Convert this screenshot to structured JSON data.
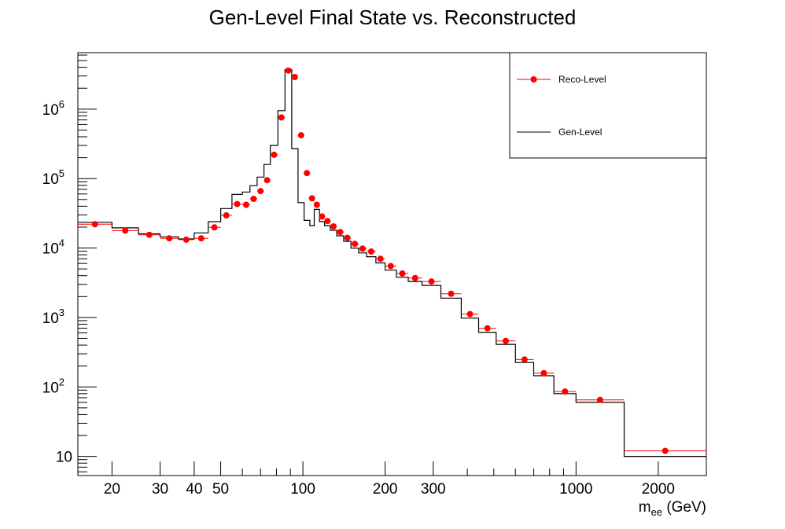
{
  "chart_data": {
    "type": "histogram",
    "title": "Gen-Level Final State vs. Reconstructed",
    "xlabel": {
      "main": "m",
      "sub": "ee",
      "unit": " (GeV)"
    },
    "ylabel": "",
    "x_scale": "log",
    "y_scale": "log",
    "xlim": [
      15,
      3000
    ],
    "ylim": [
      5.3,
      6500000
    ],
    "x_ticks": [
      {
        "value": 20,
        "label": "20"
      },
      {
        "value": 30,
        "label": "30"
      },
      {
        "value": 40,
        "label": "40"
      },
      {
        "value": 50,
        "label": "50"
      },
      {
        "value": 100,
        "label": "100"
      },
      {
        "value": 200,
        "label": "200"
      },
      {
        "value": 300,
        "label": "300"
      },
      {
        "value": 1000,
        "label": "1000"
      },
      {
        "value": 2000,
        "label": "2000"
      }
    ],
    "y_ticks": [
      {
        "value": 10,
        "label": "10",
        "exp": ""
      },
      {
        "value": 100,
        "label": "10",
        "exp": "2"
      },
      {
        "value": 1000,
        "label": "10",
        "exp": "3"
      },
      {
        "value": 10000,
        "label": "10",
        "exp": "4"
      },
      {
        "value": 100000,
        "label": "10",
        "exp": "5"
      },
      {
        "value": 1000000,
        "label": "10",
        "exp": "6"
      }
    ],
    "bin_edges": [
      15,
      20,
      25,
      30,
      35,
      40,
      45,
      50,
      55,
      60,
      64,
      68,
      72,
      76,
      81,
      86,
      91,
      96,
      101,
      106,
      110,
      115,
      120,
      126,
      133,
      141,
      150,
      160,
      171,
      185,
      200,
      220,
      243,
      273,
      320,
      380,
      440,
      510,
      600,
      700,
      830,
      1000,
      1500,
      3000
    ],
    "series": [
      {
        "name": "Reco-Level",
        "style": "markers",
        "color": "#ff0000",
        "values": [
          22000,
          17800,
          15500,
          13800,
          13200,
          13800,
          19800,
          29500,
          43000,
          42000,
          51000,
          66000,
          95000,
          220000,
          760000,
          3600000,
          2900000,
          420000,
          120000,
          52000,
          42000,
          28500,
          24500,
          20500,
          17000,
          14000,
          11500,
          9800,
          8900,
          7000,
          5500,
          4300,
          3700,
          3300,
          2200,
          1120,
          700,
          460,
          248,
          158,
          86,
          65,
          12
        ]
      },
      {
        "name": "Gen-Level",
        "style": "step",
        "color": "#000000",
        "values": [
          23500,
          19500,
          16000,
          14500,
          13500,
          16500,
          24000,
          37000,
          59000,
          64000,
          79000,
          105000,
          160000,
          300000,
          950000,
          3700000,
          270000,
          45000,
          25000,
          21000,
          36000,
          24000,
          21000,
          18000,
          15000,
          12500,
          10000,
          8500,
          7500,
          6100,
          4800,
          3800,
          3300,
          2900,
          1900,
          980,
          610,
          410,
          225,
          145,
          80,
          60,
          10
        ]
      }
    ],
    "legend": {
      "position": "top-right",
      "entries": [
        "Reco-Level",
        "Gen-Level"
      ]
    },
    "grid": false
  }
}
